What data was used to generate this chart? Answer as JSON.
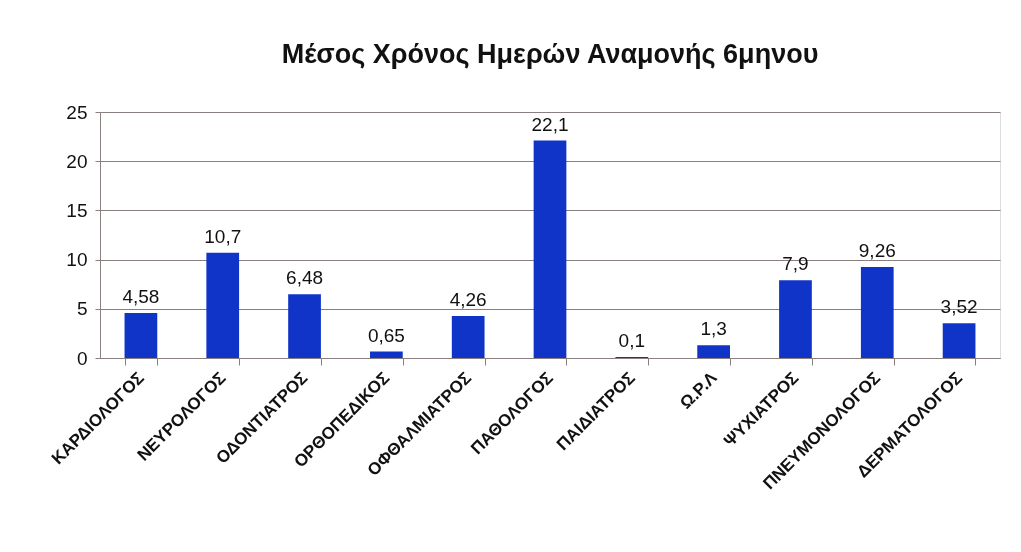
{
  "chart_data": {
    "type": "bar",
    "title": "Μέσος Χρόνος Ημερών Αναμονής 6μηνου",
    "categories": [
      "ΚΑΡΔΙΟΛΟΓΟΣ",
      "ΝΕΥΡΟΛΟΓΟΣ",
      "ΟΔΟΝΤΙΑΤΡΟΣ",
      "ΟΡΘΟΠΕΔΙΚΟΣ",
      "ΟΦΘΑΛΜΙΑΤΡΟΣ",
      "ΠΑΘΟΛΟΓΟΣ",
      "ΠΑΙΔΙΑΤΡΟΣ",
      "Ω.Ρ.Λ",
      "ΨΥΧΙΑΤΡΟΣ",
      "ΠΝΕΥΜΟΝΟΛΟΓΟΣ",
      "ΔΕΡΜΑΤΟΛΟΓΟΣ"
    ],
    "values": [
      4.58,
      10.7,
      6.48,
      0.65,
      4.26,
      22.1,
      0.1,
      1.3,
      7.9,
      9.26,
      3.52
    ],
    "value_labels": [
      "4,58",
      "10,7",
      "6,48",
      "0,65",
      "4,26",
      "22,1",
      "0,1",
      "1,3",
      "7,9",
      "9,26",
      "3,52"
    ],
    "color": "#1034c8",
    "ylim": [
      0,
      25
    ],
    "yticks": [
      0,
      5,
      10,
      15,
      20,
      25
    ],
    "grid": "y"
  }
}
